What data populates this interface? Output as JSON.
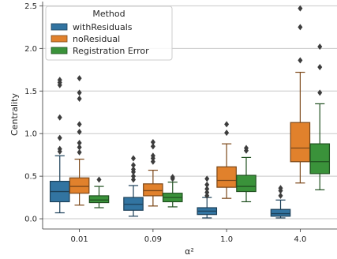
{
  "chart_data": {
    "type": "box",
    "xlabel": "α²",
    "ylabel": "Centrality",
    "ylim": [
      -0.12,
      2.55
    ],
    "yticks": [
      0.0,
      0.5,
      1.0,
      1.5,
      2.0,
      2.5
    ],
    "ytick_labels": [
      "0.0",
      "0.5",
      "1.0",
      "1.5",
      "2.0",
      "2.5"
    ],
    "grid": "horizontal",
    "categories": [
      "0.01",
      "0.09",
      "1.0",
      "4.0"
    ],
    "legend": {
      "title": "Method",
      "placement": "top-left"
    },
    "series": [
      {
        "name": "withResiduals",
        "color": "#3274a1",
        "boxes": [
          {
            "q1": 0.2,
            "median": 0.32,
            "q3": 0.44,
            "whisker_low": 0.07,
            "whisker_high": 0.74,
            "outliers": [
              0.79,
              0.82,
              0.95,
              1.19,
              1.57,
              1.6,
              1.63
            ]
          },
          {
            "q1": 0.1,
            "median": 0.17,
            "q3": 0.25,
            "whisker_low": 0.03,
            "whisker_high": 0.39,
            "outliers": [
              0.46,
              0.5,
              0.55,
              0.58,
              0.63,
              0.71
            ]
          },
          {
            "q1": 0.05,
            "median": 0.09,
            "q3": 0.13,
            "whisker_low": 0.01,
            "whisker_high": 0.25,
            "outliers": [
              0.27,
              0.31,
              0.35,
              0.4,
              0.47
            ]
          },
          {
            "q1": 0.03,
            "median": 0.06,
            "q3": 0.11,
            "whisker_low": 0.01,
            "whisker_high": 0.22,
            "outliers": [
              0.27,
              0.33,
              0.36
            ]
          }
        ]
      },
      {
        "name": "noResidual",
        "color": "#e1812c",
        "boxes": [
          {
            "q1": 0.3,
            "median": 0.38,
            "q3": 0.48,
            "whisker_low": 0.16,
            "whisker_high": 0.7,
            "outliers": [
              0.78,
              0.84,
              0.89,
              1.02,
              1.11,
              1.41,
              1.48,
              1.65
            ]
          },
          {
            "q1": 0.27,
            "median": 0.33,
            "q3": 0.41,
            "whisker_low": 0.15,
            "whisker_high": 0.57,
            "outliers": [
              0.67,
              0.71,
              0.74,
              0.85,
              0.9
            ]
          },
          {
            "q1": 0.37,
            "median": 0.45,
            "q3": 0.61,
            "whisker_low": 0.24,
            "whisker_high": 0.88,
            "outliers": [
              1.01,
              1.11
            ]
          },
          {
            "q1": 0.67,
            "median": 0.83,
            "q3": 1.13,
            "whisker_low": 0.42,
            "whisker_high": 1.72,
            "outliers": [
              1.86,
              2.25,
              2.47
            ]
          }
        ]
      },
      {
        "name": "Registration Error",
        "color": "#3a923a",
        "boxes": [
          {
            "q1": 0.19,
            "median": 0.22,
            "q3": 0.27,
            "whisker_low": 0.13,
            "whisker_high": 0.38,
            "outliers": [
              0.46
            ]
          },
          {
            "q1": 0.2,
            "median": 0.25,
            "q3": 0.3,
            "whisker_low": 0.14,
            "whisker_high": 0.43,
            "outliers": [
              0.47,
              0.49
            ]
          },
          {
            "q1": 0.32,
            "median": 0.38,
            "q3": 0.51,
            "whisker_low": 0.2,
            "whisker_high": 0.72,
            "outliers": [
              0.8,
              0.83
            ]
          },
          {
            "q1": 0.53,
            "median": 0.67,
            "q3": 0.88,
            "whisker_low": 0.34,
            "whisker_high": 1.35,
            "outliers": [
              1.48,
              1.78,
              2.02
            ]
          }
        ]
      }
    ]
  }
}
